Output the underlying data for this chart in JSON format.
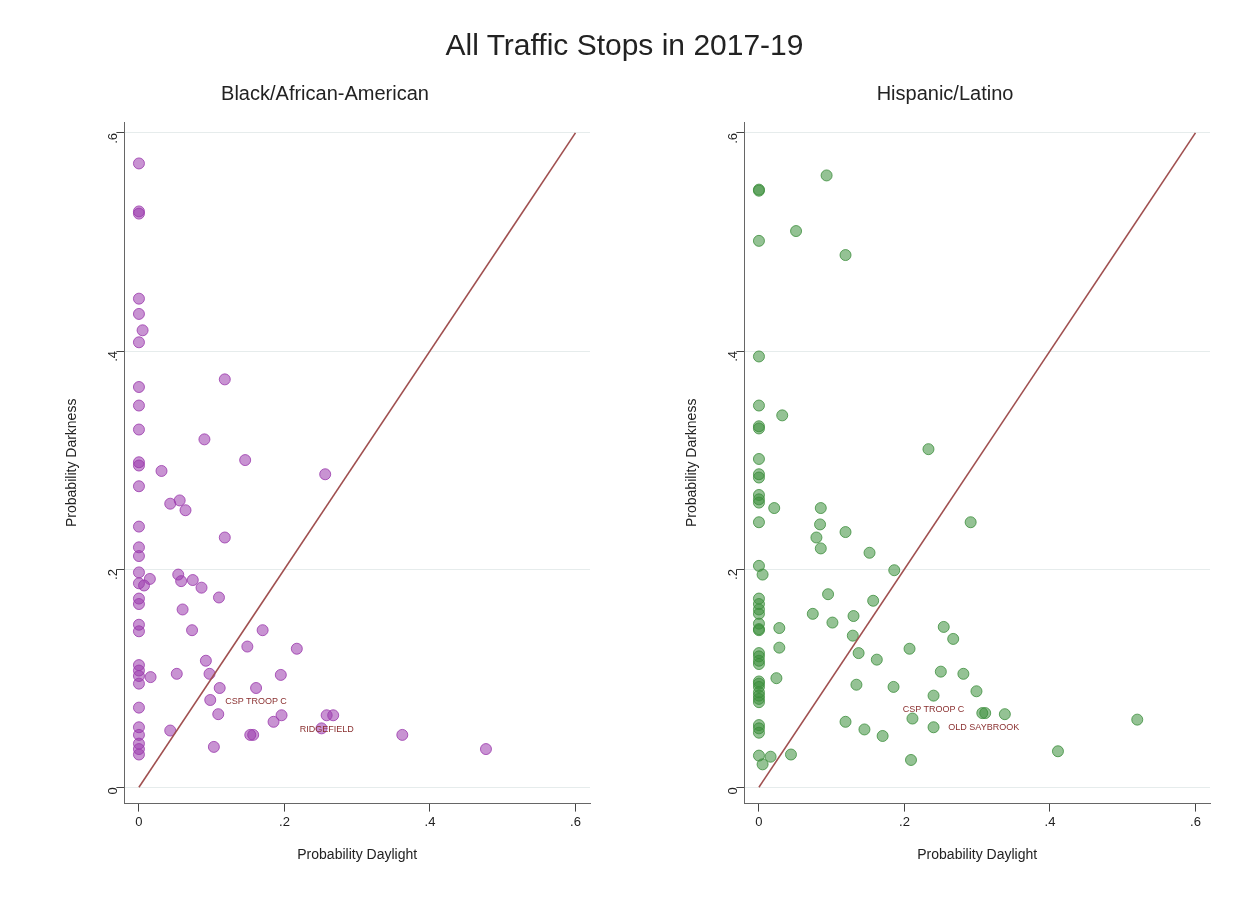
{
  "chart_data": [
    {
      "type": "other",
      "title": "All Traffic Stops in 2017-19"
    },
    {
      "type": "scatter",
      "title": "Black/African-American",
      "xlabel": "Probability Daylight",
      "ylabel": "Probability Darkness",
      "xlim": [
        -0.02,
        0.62
      ],
      "ylim": [
        -0.015,
        0.61
      ],
      "xticks": [
        {
          "value": 0,
          "label": "0"
        },
        {
          "value": 0.2,
          "label": ".2"
        },
        {
          "value": 0.4,
          "label": ".4"
        },
        {
          "value": 0.6,
          "label": ".6"
        }
      ],
      "yticks": [
        {
          "value": 0,
          "label": "0"
        },
        {
          "value": 0.2,
          "label": ".2"
        },
        {
          "value": 0.4,
          "label": ".4"
        },
        {
          "value": 0.6,
          "label": ".6"
        }
      ],
      "grid": "y",
      "legend": false,
      "marker": "circle",
      "series": [
        {
          "type": "scatter",
          "color": "#9b3aad",
          "x": [
            0,
            0,
            0,
            0,
            0,
            0,
            0,
            0,
            0,
            0,
            0,
            0,
            0,
            0,
            0,
            0,
            0,
            0,
            0,
            0,
            0,
            0,
            0,
            0,
            0,
            0,
            0,
            0,
            0,
            0,
            0,
            0.005,
            0.118,
            0.09,
            0.146,
            0.256,
            0.031,
            0.043,
            0.056,
            0.064,
            0.118,
            0.007,
            0.015,
            0.054,
            0.058,
            0.074,
            0.086,
            0.11,
            0.06,
            0.073,
            0.17,
            0.092,
            0.149,
            0.217,
            0.016,
            0.052,
            0.097,
            0.195,
            0.111,
            0.161,
            0.098,
            0.109,
            0.258,
            0.267,
            0.185,
            0.196,
            0.251,
            0.043,
            0.153,
            0.157,
            0.362,
            0.103,
            0.477
          ],
          "values": [
            0.572,
            0.528,
            0.526,
            0.448,
            0.434,
            0.408,
            0.367,
            0.35,
            0.328,
            0.298,
            0.295,
            0.276,
            0.239,
            0.22,
            0.212,
            0.197,
            0.187,
            0.173,
            0.168,
            0.149,
            0.143,
            0.112,
            0.107,
            0.102,
            0.095,
            0.073,
            0.055,
            0.048,
            0.04,
            0.035,
            0.03,
            0.419,
            0.374,
            0.319,
            0.3,
            0.287,
            0.29,
            0.26,
            0.263,
            0.254,
            0.229,
            0.185,
            0.191,
            0.195,
            0.189,
            0.19,
            0.183,
            0.174,
            0.163,
            0.144,
            0.144,
            0.116,
            0.129,
            0.127,
            0.101,
            0.104,
            0.104,
            0.103,
            0.091,
            0.091,
            0.08,
            0.067,
            0.066,
            0.066,
            0.06,
            0.066,
            0.054,
            0.052,
            0.048,
            0.048,
            0.048,
            0.037,
            0.035
          ]
        },
        {
          "type": "line",
          "color": "#a05050",
          "line_style": "solid",
          "marker": "none",
          "x": [
            0,
            0.6
          ],
          "values": [
            0,
            0.6
          ]
        }
      ],
      "annotations": [
        {
          "text": "CSP TROOP C",
          "x": 0.161,
          "y": 0.091
        },
        {
          "text": "RIDGEFIELD",
          "x": 0.258,
          "y": 0.066
        }
      ]
    },
    {
      "type": "scatter",
      "title": "Hispanic/Latino",
      "xlabel": "Probability Daylight",
      "ylabel": "Probability Darkness",
      "xlim": [
        -0.02,
        0.62
      ],
      "ylim": [
        -0.015,
        0.61
      ],
      "xticks": [
        {
          "value": 0,
          "label": "0"
        },
        {
          "value": 0.2,
          "label": ".2"
        },
        {
          "value": 0.4,
          "label": ".4"
        },
        {
          "value": 0.6,
          "label": ".6"
        }
      ],
      "yticks": [
        {
          "value": 0,
          "label": "0"
        },
        {
          "value": 0.2,
          "label": ".2"
        },
        {
          "value": 0.4,
          "label": ".4"
        },
        {
          "value": 0.6,
          "label": ".6"
        }
      ],
      "grid": "y",
      "legend": false,
      "marker": "circle",
      "series": [
        {
          "type": "scatter",
          "color": "#3d8f3d",
          "x": [
            0,
            0,
            0,
            0,
            0,
            0,
            0,
            0,
            0,
            0,
            0,
            0,
            0,
            0,
            0,
            0,
            0,
            0,
            0,
            0,
            0,
            0,
            0,
            0,
            0,
            0,
            0,
            0,
            0,
            0,
            0,
            0,
            0,
            0,
            0,
            0,
            0,
            0.093,
            0.051,
            0.119,
            0.032,
            0.233,
            0.021,
            0.085,
            0.084,
            0.119,
            0.079,
            0.085,
            0.152,
            0.291,
            0.186,
            0.005,
            0.095,
            0.157,
            0.074,
            0.13,
            0.028,
            0.101,
            0.254,
            0.267,
            0.129,
            0.028,
            0.207,
            0.137,
            0.162,
            0.25,
            0.281,
            0.024,
            0.134,
            0.185,
            0.299,
            0.24,
            0.307,
            0.311,
            0.338,
            0.211,
            0.119,
            0.24,
            0.145,
            0.17,
            0.016,
            0.044,
            0.005,
            0.209,
            0.411,
            0.52
          ],
          "values": [
            0.548,
            0.547,
            0.501,
            0.395,
            0.35,
            0.331,
            0.329,
            0.301,
            0.287,
            0.268,
            0.264,
            0.261,
            0.243,
            0.203,
            0.173,
            0.168,
            0.163,
            0.159,
            0.15,
            0.145,
            0.144,
            0.123,
            0.12,
            0.116,
            0.113,
            0.097,
            0.095,
            0.092,
            0.087,
            0.084,
            0.081,
            0.078,
            0.057,
            0.054,
            0.05,
            0.029,
            0.284,
            0.561,
            0.51,
            0.488,
            0.341,
            0.31,
            0.256,
            0.256,
            0.241,
            0.234,
            0.229,
            0.219,
            0.215,
            0.243,
            0.199,
            0.195,
            0.177,
            0.171,
            0.159,
            0.157,
            0.146,
            0.151,
            0.147,
            0.136,
            0.139,
            0.128,
            0.127,
            0.123,
            0.117,
            0.106,
            0.104,
            0.1,
            0.094,
            0.092,
            0.088,
            0.084,
            0.068,
            0.068,
            0.067,
            0.063,
            0.06,
            0.055,
            0.053,
            0.047,
            0.028,
            0.03,
            0.021,
            0.025,
            0.033,
            0.062
          ]
        },
        {
          "type": "line",
          "color": "#a05050",
          "line_style": "solid",
          "marker": "none",
          "x": [
            0,
            0.6
          ],
          "values": [
            0,
            0.6
          ]
        }
      ],
      "annotations": [
        {
          "text": "CSP TROOP C",
          "x": 0.24,
          "y": 0.084
        },
        {
          "text": "OLD SAYBROOK",
          "x": 0.309,
          "y": 0.068
        }
      ]
    }
  ]
}
